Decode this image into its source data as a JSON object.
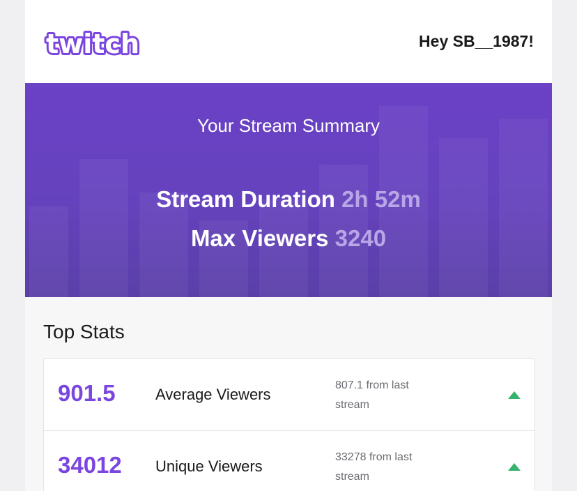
{
  "header": {
    "logo_text": "twitch",
    "greeting": "Hey SB__1987!"
  },
  "banner": {
    "title": "Your Stream Summary",
    "duration_label": "Stream Duration",
    "duration_value": "2h 52m",
    "max_viewers_label": "Max Viewers",
    "max_viewers_value": "3240"
  },
  "top_stats": {
    "title": "Top Stats",
    "rows": [
      {
        "value": "901.5",
        "label": "Average Viewers",
        "compare": "807.1 from last stream",
        "trend": "up"
      },
      {
        "value": "34012",
        "label": "Unique Viewers",
        "compare": "33278 from last stream",
        "trend": "up"
      }
    ]
  },
  "colors": {
    "brand_purple": "#6b41c6",
    "stat_value_purple": "#7b46e0",
    "trend_up_green": "#35b36e"
  },
  "icons": {
    "trend_up": "triangle-up-icon"
  }
}
